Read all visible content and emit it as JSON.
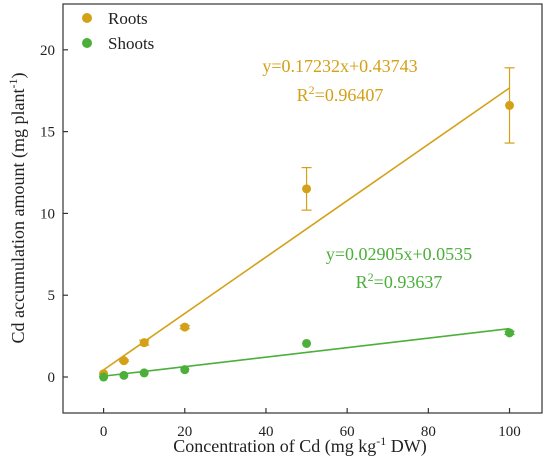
{
  "chart_data": {
    "type": "scatter",
    "title": "",
    "xlabel": {
      "prefix": "Concentration of Cd (mg kg",
      "superscript": "-1",
      "suffix": " DW)"
    },
    "ylabel": {
      "prefix": "Cd accumulation amount (mg plant",
      "superscript": "-1",
      "suffix": ")"
    },
    "xlim": [
      -10,
      108
    ],
    "ylim": [
      -2.2,
      22.8
    ],
    "xticks": [
      "0",
      "20",
      "40",
      "60",
      "80",
      "100"
    ],
    "yticks": [
      "0",
      "5",
      "10",
      "15",
      "20"
    ],
    "legend_position": "top-left",
    "series": [
      {
        "name": "Roots",
        "color": "#D4A017",
        "points": [
          {
            "x": 0,
            "y": 0.2,
            "err": 0
          },
          {
            "x": 5,
            "y": 1.0,
            "err": 0.05
          },
          {
            "x": 10,
            "y": 2.1,
            "err": 0.15
          },
          {
            "x": 20,
            "y": 3.05,
            "err": 0.1
          },
          {
            "x": 50,
            "y": 11.5,
            "err": 1.3
          },
          {
            "x": 100,
            "y": 16.6,
            "err": 2.3
          }
        ],
        "fit": {
          "slope": 0.17232,
          "intercept": 0.43743
        },
        "equation": "y=0.17232x+0.43743",
        "r2_label": "R",
        "r2_sup": "2",
        "r2_value": "=0.96407"
      },
      {
        "name": "Shoots",
        "color": "#4CAF3A",
        "points": [
          {
            "x": 0,
            "y": 0.0,
            "err": 0
          },
          {
            "x": 5,
            "y": 0.1,
            "err": 0
          },
          {
            "x": 10,
            "y": 0.25,
            "err": 0
          },
          {
            "x": 20,
            "y": 0.45,
            "err": 0
          },
          {
            "x": 50,
            "y": 2.05,
            "err": 0
          },
          {
            "x": 100,
            "y": 2.7,
            "err": 0.1
          }
        ],
        "fit": {
          "slope": 0.02905,
          "intercept": 0.0535
        },
        "equation": "y=0.02905x+0.0535",
        "r2_label": "R",
        "r2_sup": "2",
        "r2_value": "=0.93637"
      }
    ]
  }
}
